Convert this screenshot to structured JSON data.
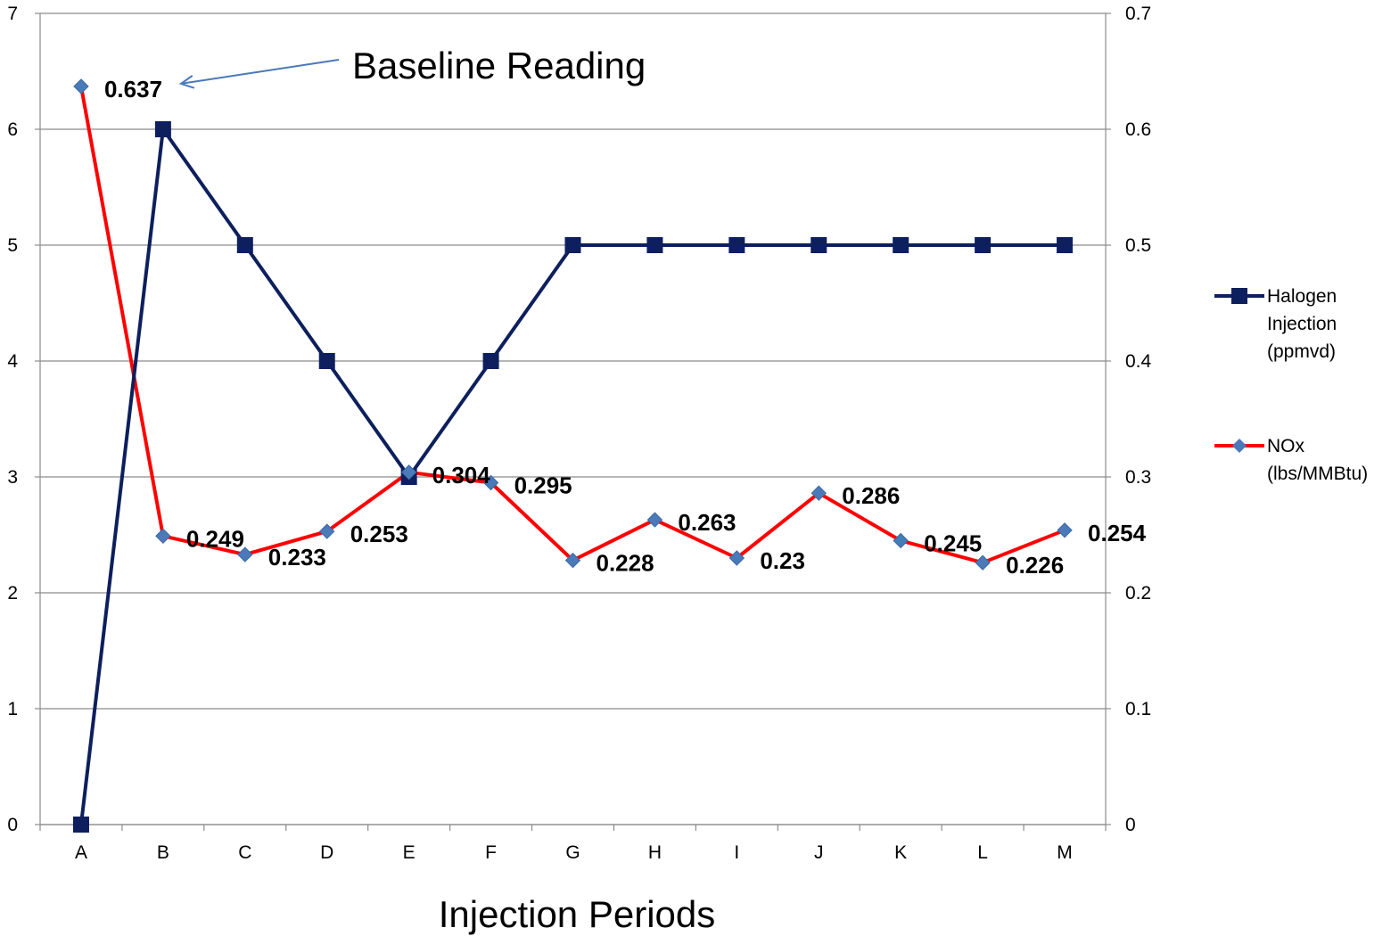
{
  "chart_data": {
    "type": "line",
    "categories": [
      "A",
      "B",
      "C",
      "D",
      "E",
      "F",
      "G",
      "H",
      "I",
      "J",
      "K",
      "L",
      "M"
    ],
    "xlabel": "Injection Periods",
    "y_left": {
      "min": 0,
      "max": 7,
      "step": 1,
      "tick_labels": [
        "0",
        "1",
        "2",
        "3",
        "4",
        "5",
        "6",
        "7"
      ]
    },
    "y_right": {
      "min": 0,
      "max": 0.7,
      "step": 0.1,
      "tick_labels": [
        "0",
        "0.1",
        "0.2",
        "0.3",
        "0.4",
        "0.5",
        "0.6",
        "0.7"
      ]
    },
    "grid": true,
    "legend_position": "right",
    "series": [
      {
        "name": "Halogen Injection (ppmvd)",
        "name_lines": [
          "Halogen",
          "Injection",
          "(ppmvd)"
        ],
        "axis": "left",
        "color": "#0d1f5c",
        "marker": "square",
        "values": [
          0,
          6,
          5,
          4,
          3,
          4,
          5,
          5,
          5,
          5,
          5,
          5,
          5
        ]
      },
      {
        "name": "NOx (lbs/MMBtu)",
        "name_lines": [
          "NOx",
          "(lbs/MMBtu)"
        ],
        "axis": "right",
        "color": "#ff0000",
        "marker_color": "#4a7ab8",
        "marker": "diamond",
        "values": [
          0.637,
          0.249,
          0.233,
          0.253,
          0.304,
          0.295,
          0.228,
          0.263,
          0.23,
          0.286,
          0.245,
          0.226,
          0.254
        ],
        "data_labels": [
          "0.637",
          "0.249",
          "0.233",
          "0.253",
          "0.304",
          "0.295",
          "0.228",
          "0.263",
          "0.23",
          "0.286",
          "0.245",
          "0.226",
          "0.254"
        ]
      }
    ],
    "annotation": {
      "text": "Baseline Reading",
      "points_to_index": 0
    }
  }
}
